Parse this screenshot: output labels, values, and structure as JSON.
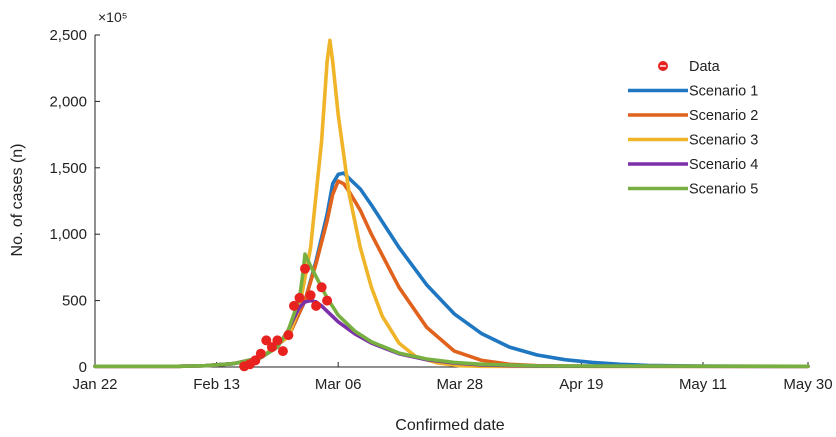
{
  "chart_data": {
    "type": "line",
    "xlabel": "Confirmed date",
    "ylabel": "No. of cases (n)",
    "y_multiplier": "×10⁵",
    "xlim": [
      0,
      129
    ],
    "ylim": [
      0,
      2500
    ],
    "x_ticks": [
      {
        "label": "Jan 22",
        "value": 0
      },
      {
        "label": "Feb 13",
        "value": 22
      },
      {
        "label": "Mar 06",
        "value": 44
      },
      {
        "label": "Mar 28",
        "value": 66
      },
      {
        "label": "Apr 19",
        "value": 88
      },
      {
        "label": "May 11",
        "value": 110
      },
      {
        "label": "May 30",
        "value": 129
      }
    ],
    "y_ticks": [
      {
        "label": "0",
        "value": 0
      },
      {
        "label": "500",
        "value": 500
      },
      {
        "label": "1,000",
        "value": 1000
      },
      {
        "label": "1,500",
        "value": 1500
      },
      {
        "label": "2,000",
        "value": 2000
      },
      {
        "label": "2,500",
        "value": 2500
      }
    ],
    "legend_position": "top-right",
    "grid": false,
    "data_points": {
      "name": "Data",
      "color": "#e8221f",
      "points": [
        [
          27,
          5
        ],
        [
          28,
          20
        ],
        [
          29,
          50
        ],
        [
          30,
          100
        ],
        [
          31,
          200
        ],
        [
          32,
          150
        ],
        [
          33,
          200
        ],
        [
          34,
          120
        ],
        [
          35,
          240
        ],
        [
          36,
          460
        ],
        [
          37,
          520
        ],
        [
          38,
          740
        ],
        [
          39,
          540
        ],
        [
          40,
          460
        ],
        [
          41,
          600
        ],
        [
          42,
          500
        ]
      ]
    },
    "series": [
      {
        "name": "Scenario 1",
        "color": "#1f77c2",
        "points": [
          [
            0,
            5
          ],
          [
            15,
            5
          ],
          [
            20,
            10
          ],
          [
            25,
            25
          ],
          [
            30,
            70
          ],
          [
            35,
            230
          ],
          [
            38,
            500
          ],
          [
            40,
            800
          ],
          [
            42,
            1150
          ],
          [
            43,
            1380
          ],
          [
            44,
            1450
          ],
          [
            45,
            1460
          ],
          [
            46,
            1420
          ],
          [
            48,
            1340
          ],
          [
            50,
            1220
          ],
          [
            55,
            900
          ],
          [
            60,
            620
          ],
          [
            65,
            400
          ],
          [
            70,
            250
          ],
          [
            75,
            150
          ],
          [
            80,
            90
          ],
          [
            85,
            55
          ],
          [
            90,
            35
          ],
          [
            95,
            20
          ],
          [
            100,
            12
          ],
          [
            110,
            6
          ],
          [
            120,
            5
          ],
          [
            129,
            5
          ]
        ]
      },
      {
        "name": "Scenario 2",
        "color": "#e0621d",
        "points": [
          [
            0,
            5
          ],
          [
            15,
            5
          ],
          [
            20,
            10
          ],
          [
            25,
            25
          ],
          [
            30,
            70
          ],
          [
            35,
            230
          ],
          [
            38,
            500
          ],
          [
            40,
            780
          ],
          [
            42,
            1100
          ],
          [
            43,
            1300
          ],
          [
            44,
            1400
          ],
          [
            45,
            1380
          ],
          [
            46,
            1320
          ],
          [
            48,
            1180
          ],
          [
            50,
            1000
          ],
          [
            55,
            600
          ],
          [
            60,
            300
          ],
          [
            65,
            120
          ],
          [
            70,
            50
          ],
          [
            75,
            20
          ],
          [
            80,
            10
          ],
          [
            90,
            5
          ],
          [
            129,
            5
          ]
        ]
      },
      {
        "name": "Scenario 3",
        "color": "#f0b429",
        "points": [
          [
            0,
            5
          ],
          [
            15,
            5
          ],
          [
            20,
            10
          ],
          [
            25,
            25
          ],
          [
            30,
            70
          ],
          [
            35,
            230
          ],
          [
            37,
            450
          ],
          [
            39,
            900
          ],
          [
            41,
            1700
          ],
          [
            42,
            2300
          ],
          [
            42.5,
            2460
          ],
          [
            43,
            2300
          ],
          [
            44,
            1900
          ],
          [
            46,
            1300
          ],
          [
            48,
            900
          ],
          [
            50,
            600
          ],
          [
            52,
            380
          ],
          [
            55,
            180
          ],
          [
            58,
            80
          ],
          [
            62,
            30
          ],
          [
            66,
            10
          ],
          [
            70,
            5
          ],
          [
            129,
            5
          ]
        ]
      },
      {
        "name": "Scenario 4",
        "color": "#7b2fa8",
        "points": [
          [
            0,
            5
          ],
          [
            15,
            5
          ],
          [
            20,
            10
          ],
          [
            25,
            25
          ],
          [
            30,
            70
          ],
          [
            33,
            150
          ],
          [
            35,
            280
          ],
          [
            36,
            370
          ],
          [
            37,
            450
          ],
          [
            38,
            490
          ],
          [
            39,
            500
          ],
          [
            40,
            490
          ],
          [
            41,
            460
          ],
          [
            42,
            420
          ],
          [
            44,
            340
          ],
          [
            47,
            250
          ],
          [
            50,
            180
          ],
          [
            55,
            100
          ],
          [
            60,
            55
          ],
          [
            65,
            30
          ],
          [
            70,
            15
          ],
          [
            80,
            6
          ],
          [
            129,
            5
          ]
        ]
      },
      {
        "name": "Scenario 5",
        "color": "#77b041",
        "points": [
          [
            0,
            5
          ],
          [
            15,
            5
          ],
          [
            20,
            10
          ],
          [
            25,
            25
          ],
          [
            30,
            70
          ],
          [
            33,
            150
          ],
          [
            35,
            280
          ],
          [
            36,
            400
          ],
          [
            37,
            520
          ],
          [
            37.6,
            700
          ],
          [
            38,
            850
          ],
          [
            39,
            760
          ],
          [
            40,
            680
          ],
          [
            41,
            600
          ],
          [
            42,
            520
          ],
          [
            44,
            390
          ],
          [
            47,
            270
          ],
          [
            50,
            190
          ],
          [
            55,
            105
          ],
          [
            60,
            60
          ],
          [
            65,
            35
          ],
          [
            70,
            20
          ],
          [
            80,
            8
          ],
          [
            129,
            5
          ]
        ]
      }
    ]
  }
}
